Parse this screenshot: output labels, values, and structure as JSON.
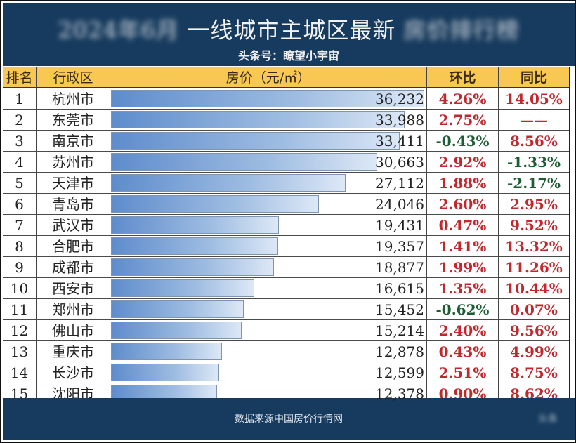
{
  "header": {
    "title_prefix_blurred": "2024年6月",
    "title": "一线城市主城区最新",
    "title_suffix_blurred": "房价排行榜",
    "subtitle": "头条号：瞭望小宇宙"
  },
  "table": {
    "columns": [
      "排名",
      "行政区",
      "房价（元/㎡）",
      "环比",
      "同比"
    ],
    "rows": [
      {
        "rank": "1",
        "district": "杭州市",
        "price": "36,232",
        "bar_pct": 99.3,
        "mom": "4.26%",
        "mom_sign": "pos",
        "yoy": "14.05%",
        "yoy_sign": "pos"
      },
      {
        "rank": "2",
        "district": "东莞市",
        "price": "33,988",
        "bar_pct": 93.1,
        "mom": "2.75%",
        "mom_sign": "pos",
        "yoy": "——",
        "yoy_sign": "pos"
      },
      {
        "rank": "3",
        "district": "南京市",
        "price": "33,411",
        "bar_pct": 91.6,
        "mom": "-0.43%",
        "mom_sign": "neg",
        "yoy": "8.56%",
        "yoy_sign": "pos"
      },
      {
        "rank": "4",
        "district": "苏州市",
        "price": "30,663",
        "bar_pct": 84.3,
        "mom": "2.92%",
        "mom_sign": "pos",
        "yoy": "-1.33%",
        "yoy_sign": "neg"
      },
      {
        "rank": "5",
        "district": "天津市",
        "price": "27,112",
        "bar_pct": 74.3,
        "mom": "1.88%",
        "mom_sign": "pos",
        "yoy": "-2.17%",
        "yoy_sign": "neg"
      },
      {
        "rank": "6",
        "district": "青岛市",
        "price": "24,046",
        "bar_pct": 65.9,
        "mom": "2.60%",
        "mom_sign": "pos",
        "yoy": "2.95%",
        "yoy_sign": "pos"
      },
      {
        "rank": "7",
        "district": "武汉市",
        "price": "19,431",
        "bar_pct": 53.2,
        "mom": "0.47%",
        "mom_sign": "pos",
        "yoy": "9.52%",
        "yoy_sign": "pos"
      },
      {
        "rank": "8",
        "district": "合肥市",
        "price": "19,357",
        "bar_pct": 53.0,
        "mom": "1.41%",
        "mom_sign": "pos",
        "yoy": "13.32%",
        "yoy_sign": "pos"
      },
      {
        "rank": "9",
        "district": "成都市",
        "price": "18,877",
        "bar_pct": 51.7,
        "mom": "1.99%",
        "mom_sign": "pos",
        "yoy": "11.26%",
        "yoy_sign": "pos"
      },
      {
        "rank": "10",
        "district": "西安市",
        "price": "16,615",
        "bar_pct": 45.5,
        "mom": "1.35%",
        "mom_sign": "pos",
        "yoy": "10.44%",
        "yoy_sign": "pos"
      },
      {
        "rank": "11",
        "district": "郑州市",
        "price": "15,452",
        "bar_pct": 42.1,
        "mom": "-0.62%",
        "mom_sign": "neg",
        "yoy": "0.07%",
        "yoy_sign": "pos"
      },
      {
        "rank": "12",
        "district": "佛山市",
        "price": "15,214",
        "bar_pct": 41.5,
        "mom": "2.40%",
        "mom_sign": "pos",
        "yoy": "9.56%",
        "yoy_sign": "pos"
      },
      {
        "rank": "13",
        "district": "重庆市",
        "price": "12,878",
        "bar_pct": 35.3,
        "mom": "0.43%",
        "mom_sign": "pos",
        "yoy": "4.99%",
        "yoy_sign": "pos"
      },
      {
        "rank": "14",
        "district": "长沙市",
        "price": "12,599",
        "bar_pct": 34.4,
        "mom": "2.51%",
        "mom_sign": "pos",
        "yoy": "8.75%",
        "yoy_sign": "pos"
      },
      {
        "rank": "15",
        "district": "沈阳市",
        "price": "12,378",
        "bar_pct": 33.7,
        "mom": "0.90%",
        "mom_sign": "pos",
        "yoy": "8.62%",
        "yoy_sign": "pos"
      }
    ]
  },
  "footer": {
    "source": "数据来源中国房价行情网",
    "watermark_blurred": "头条"
  },
  "colors": {
    "header_bg": "#173b5e",
    "column_header_bg": "#f7c852",
    "positive": "#c0282e",
    "negative": "#1e5c33",
    "bar_start": "#5e8ccc",
    "bar_end": "#dde8f6"
  },
  "chart_data": {
    "type": "table",
    "title": "一线城市主城区最新房价",
    "subtitle": "头条号：瞭望小宇宙",
    "columns": [
      "排名",
      "行政区",
      "房价（元/㎡）",
      "环比",
      "同比"
    ],
    "categories": [
      "杭州市",
      "东莞市",
      "南京市",
      "苏州市",
      "天津市",
      "青岛市",
      "武汉市",
      "合肥市",
      "成都市",
      "西安市",
      "郑州市",
      "佛山市",
      "重庆市",
      "长沙市",
      "沈阳市"
    ],
    "series": [
      {
        "name": "房价（元/㎡）",
        "values": [
          36232,
          33988,
          33411,
          30663,
          27112,
          24046,
          19431,
          19357,
          18877,
          16615,
          15452,
          15214,
          12878,
          12599,
          12378
        ]
      },
      {
        "name": "环比 (%)",
        "values": [
          4.26,
          2.75,
          -0.43,
          2.92,
          1.88,
          2.6,
          0.47,
          1.41,
          1.99,
          1.35,
          -0.62,
          2.4,
          0.43,
          2.51,
          0.9
        ]
      },
      {
        "name": "同比 (%)",
        "values": [
          14.05,
          null,
          8.56,
          -1.33,
          -2.17,
          2.95,
          9.52,
          13.32,
          11.26,
          10.44,
          0.07,
          9.56,
          4.99,
          8.75,
          8.62
        ]
      }
    ],
    "note": "房价 column rendered with in-cell data bars; 东莞市 同比 shown as ——",
    "source": "数据来源中国房价行情网"
  }
}
